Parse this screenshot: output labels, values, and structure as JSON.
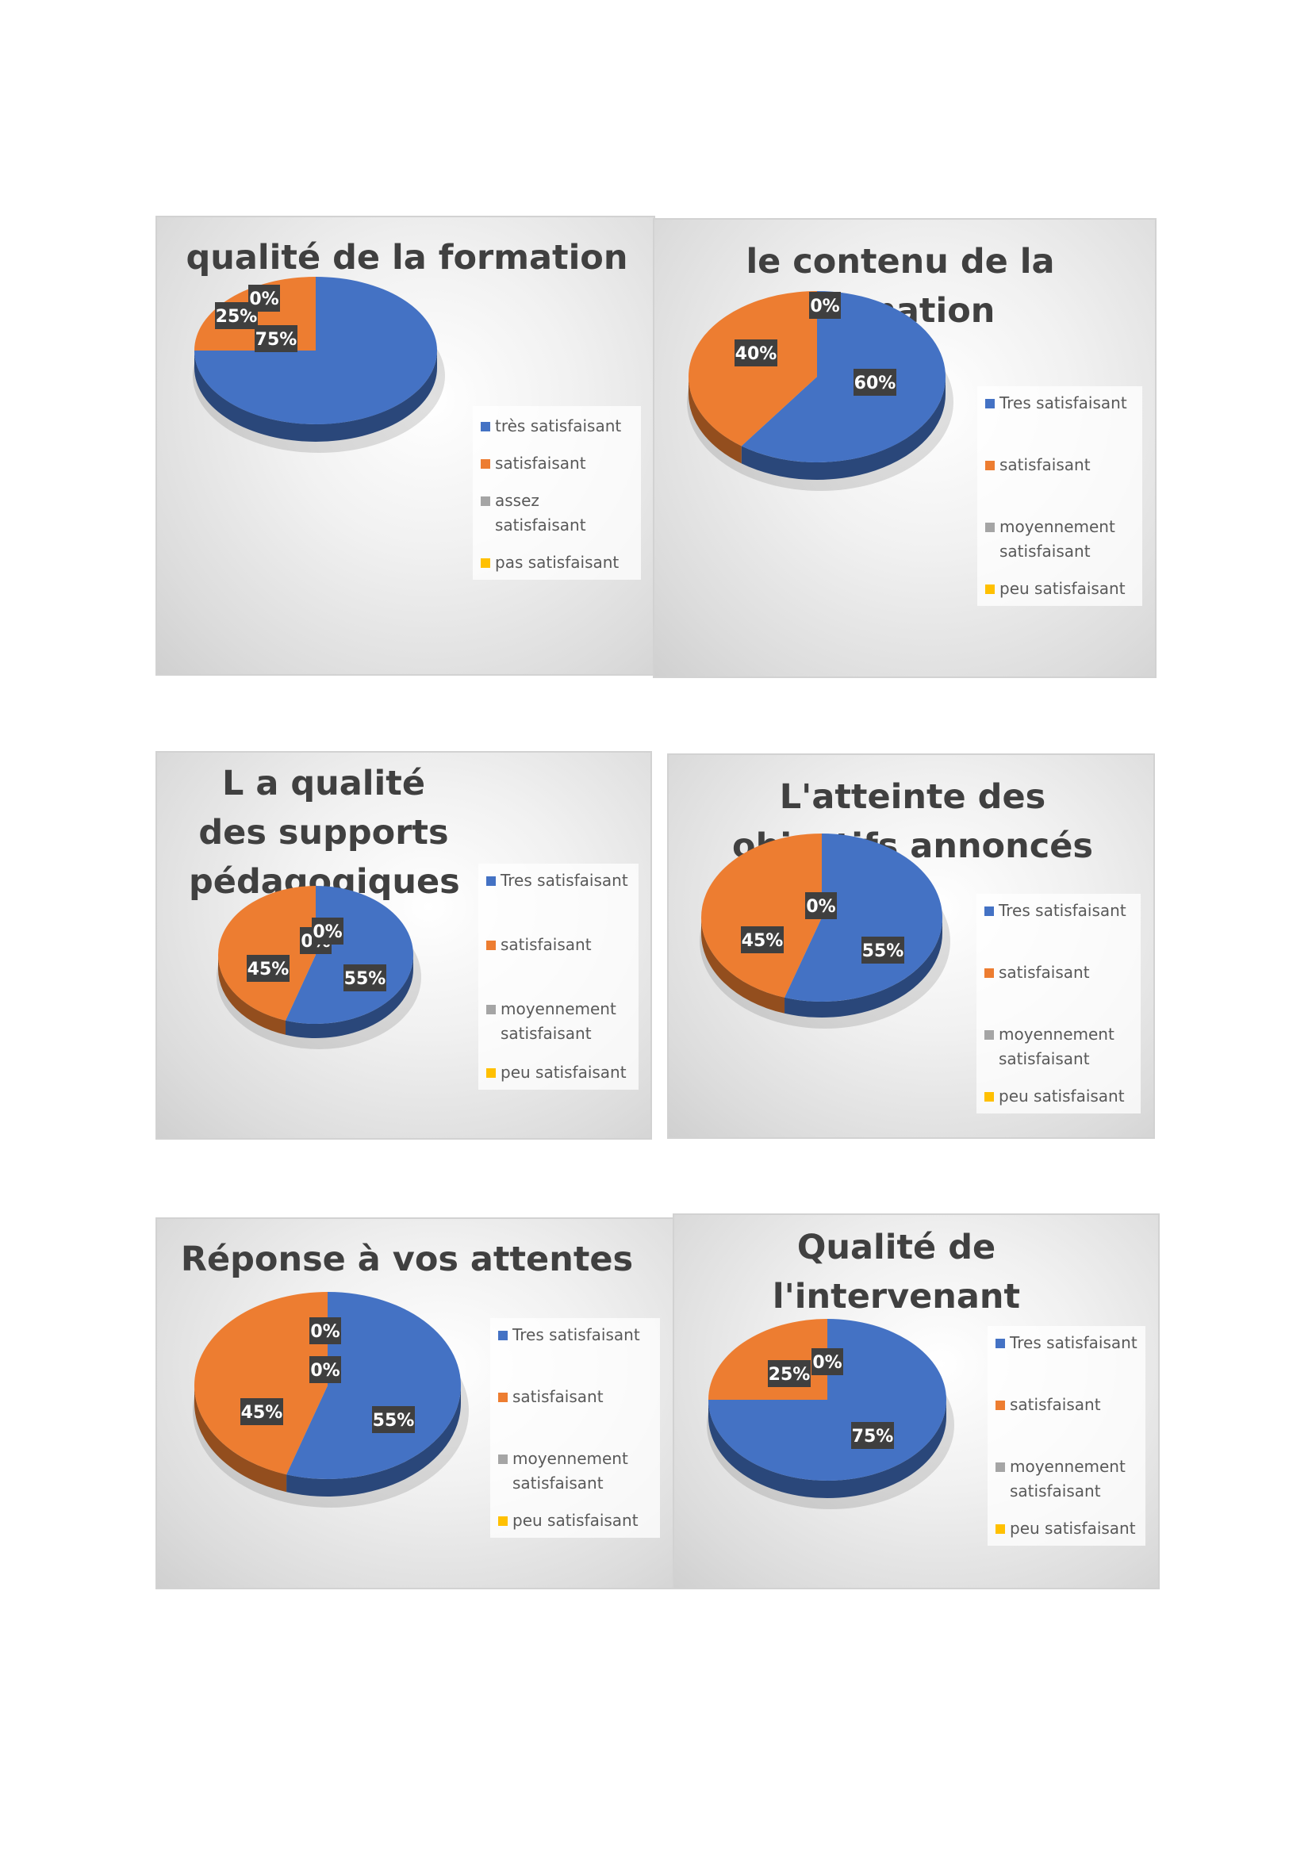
{
  "colors": {
    "tres_satisfaisant": "#4472C4",
    "satisfaisant": "#ED7D31",
    "moyen": "#A5A5A5",
    "peu": "#FFC000"
  },
  "chart_data": [
    {
      "type": "pie",
      "title": "qualité de la formation",
      "categories": [
        "très satisfaisant",
        "satisfaisant",
        "assez satisfaisant",
        "pas satisfaisant"
      ],
      "values": [
        75,
        25,
        0,
        0
      ],
      "data_labels": [
        "75%",
        "25%",
        "0%",
        "0%"
      ],
      "legend": "right"
    },
    {
      "type": "pie",
      "title": "le contenu de la formation",
      "categories": [
        "Tres satisfaisant",
        "satisfaisant",
        "moyennement satisfaisant",
        "peu satisfaisant"
      ],
      "values": [
        60,
        40,
        0,
        0
      ],
      "data_labels": [
        "60%",
        "40%",
        "0%",
        "0%"
      ],
      "legend": "right"
    },
    {
      "type": "pie",
      "title": "L a qualité des supports pédagogiques",
      "categories": [
        "Tres satisfaisant",
        "satisfaisant",
        "moyennement satisfaisant",
        "peu satisfaisant"
      ],
      "values": [
        55,
        45,
        0,
        0
      ],
      "data_labels": [
        "55%",
        "45%",
        "0%",
        "0%"
      ],
      "legend": "right"
    },
    {
      "type": "pie",
      "title": "L'atteinte des objectifs annoncés",
      "categories": [
        "Tres satisfaisant",
        "satisfaisant",
        "moyennement satisfaisant",
        "peu satisfaisant"
      ],
      "values": [
        55,
        45,
        0,
        0
      ],
      "data_labels": [
        "55%",
        "45%",
        "0%",
        "0%"
      ],
      "legend": "right"
    },
    {
      "type": "pie",
      "title": "Réponse à vos attentes",
      "categories": [
        "Tres satisfaisant",
        "satisfaisant",
        "moyennement satisfaisant",
        "peu satisfaisant"
      ],
      "values": [
        55,
        45,
        0,
        0
      ],
      "data_labels": [
        "55%",
        "45%",
        "0%",
        "0%"
      ],
      "legend": "right"
    },
    {
      "type": "pie",
      "title": "Qualité de l'intervenant",
      "categories": [
        "Tres satisfaisant",
        "satisfaisant",
        "moyennement satisfaisant",
        "peu satisfaisant"
      ],
      "values": [
        75,
        25,
        0,
        0
      ],
      "data_labels": [
        "75%",
        "25%",
        "0%",
        "0%"
      ],
      "legend": "right"
    }
  ]
}
